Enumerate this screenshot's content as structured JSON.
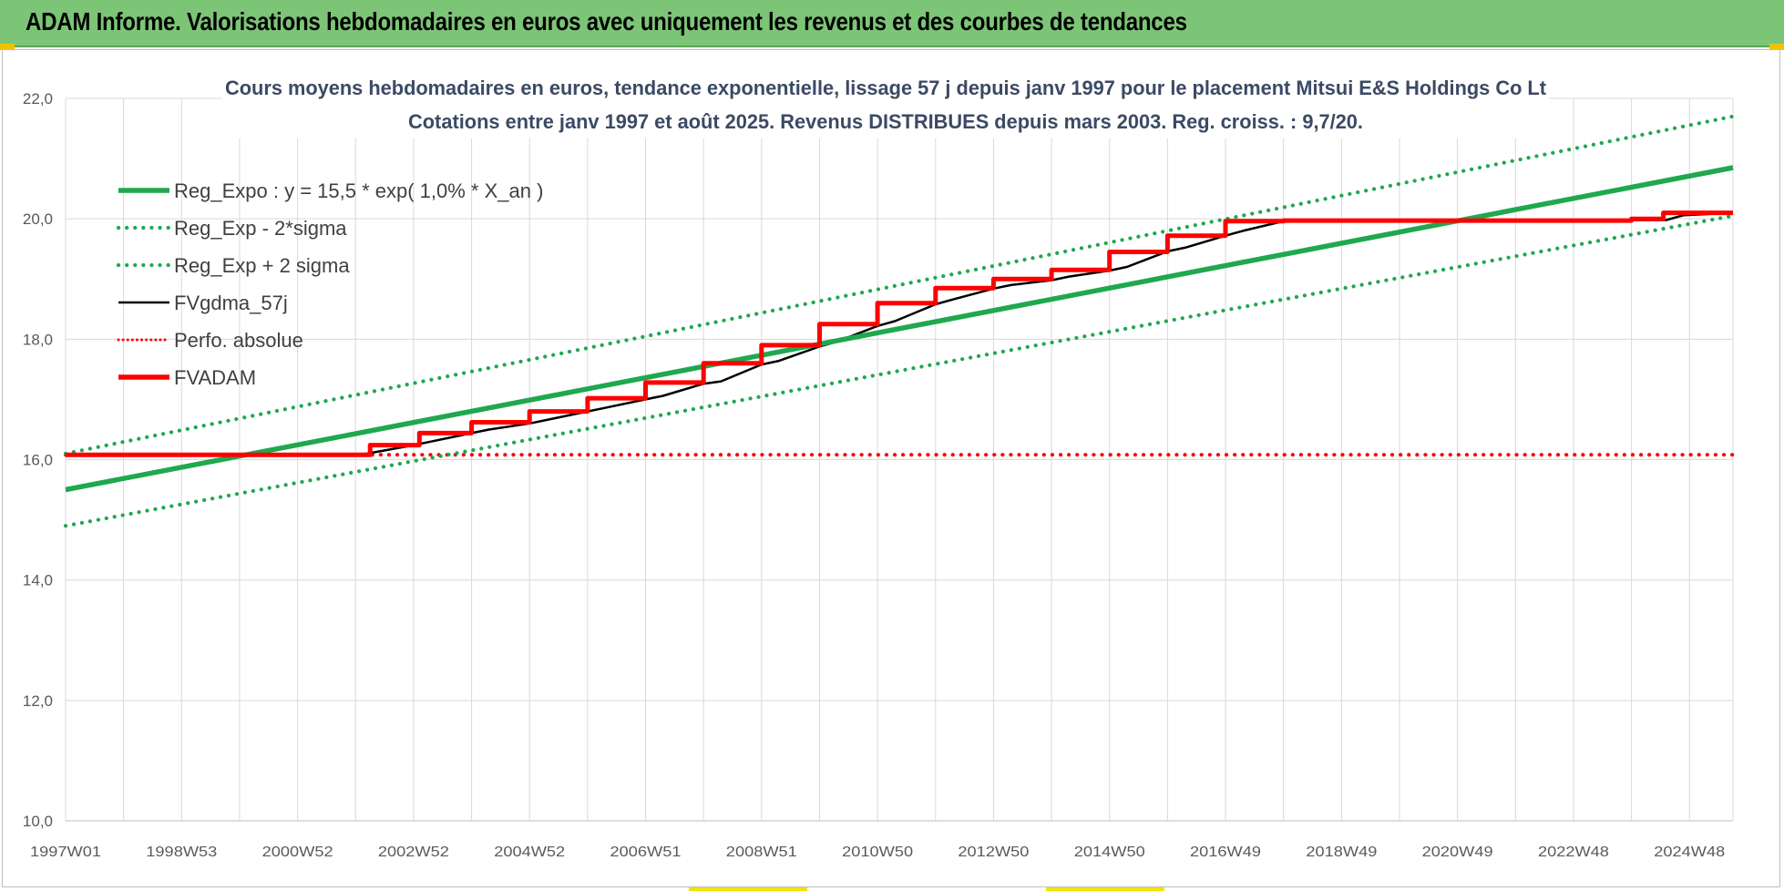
{
  "banner": {
    "title": "ADAM Informe. Valorisations hebdomadaires en euros avec uniquement les revenus et des courbes de tendances",
    "color": "#7cc576"
  },
  "chart_data": {
    "type": "line",
    "title_line1": "Cours moyens hebdomadaires en euros, tendance exponentielle, lissage 57 j depuis janv 1997 pour le placement Mitsui E&S Holdings Co Lt",
    "title_line2": "Cotations entre janv 1997 et août 2025.  Revenus DISTRIBUES depuis mars 2003. Reg. croiss. : 9,7/20.",
    "xlabel": "",
    "ylabel": "",
    "ylim": [
      10.0,
      22.0
    ],
    "xlim": [
      1997.0,
      2025.75
    ],
    "y_ticks": [
      "10,0",
      "12,0",
      "14,0",
      "16,0",
      "18,0",
      "20,0",
      "22,0"
    ],
    "y_tick_values": [
      10,
      12,
      14,
      16,
      18,
      20,
      22
    ],
    "x_ticks": [
      "1997W01",
      "1998W53",
      "2000W52",
      "2002W52",
      "2004W52",
      "2006W51",
      "2008W51",
      "2010W50",
      "2012W50",
      "2014W50",
      "2016W49",
      "2018W49",
      "2020W49",
      "2022W48",
      "2024W48"
    ],
    "x_tick_years": [
      1997.0,
      1999.0,
      2001.0,
      2003.0,
      2005.0,
      2007.0,
      2009.0,
      2011.0,
      2013.0,
      2015.0,
      2017.0,
      2019.0,
      2021.0,
      2023.0,
      2025.0
    ],
    "grid": true,
    "legend_position": "top-left",
    "series": [
      {
        "name": "Reg_Expo : y = 15,5 * exp( 1,0% *  X_an )",
        "style": "solid",
        "color": "#1fa84f",
        "x": [
          1997.0,
          2025.75
        ],
        "y": [
          15.5,
          20.85
        ]
      },
      {
        "name": "Reg_Exp - 2*sigma",
        "style": "dotted",
        "color": "#1fa84f",
        "x": [
          1997.0,
          2025.75
        ],
        "y": [
          14.9,
          20.05
        ]
      },
      {
        "name": "Reg_Exp + 2 sigma",
        "style": "dotted",
        "color": "#1fa84f",
        "x": [
          1997.0,
          2025.75
        ],
        "y": [
          16.1,
          21.7
        ]
      },
      {
        "name": "FVgdma_57j",
        "style": "solid-thin",
        "color": "#000000",
        "x": [
          1997.0,
          2001.9,
          2002.2,
          2003.0,
          2003.3,
          2004.0,
          2004.3,
          2005.0,
          2005.3,
          2006.0,
          2006.3,
          2007.0,
          2007.3,
          2008.0,
          2008.3,
          2009.0,
          2009.3,
          2010.0,
          2010.3,
          2011.0,
          2011.3,
          2012.0,
          2012.3,
          2013.0,
          2013.3,
          2014.0,
          2014.3,
          2015.0,
          2015.3,
          2016.0,
          2016.3,
          2017.0,
          2017.3,
          2018.0,
          2018.3,
          2024.6,
          2024.9,
          2025.75
        ],
        "y": [
          16.08,
          16.08,
          16.1,
          16.24,
          16.3,
          16.44,
          16.5,
          16.6,
          16.66,
          16.8,
          16.86,
          17.0,
          17.06,
          17.26,
          17.3,
          17.58,
          17.64,
          17.88,
          17.96,
          18.22,
          18.3,
          18.58,
          18.66,
          18.84,
          18.9,
          18.98,
          19.04,
          19.14,
          19.2,
          19.46,
          19.52,
          19.72,
          19.8,
          19.96,
          19.97,
          19.98,
          20.06,
          20.1
        ]
      },
      {
        "name": "Perfo. absolue",
        "style": "dotted",
        "color": "#ff0000",
        "x": [
          1997.0,
          2025.75
        ],
        "y": [
          16.08,
          16.08
        ]
      },
      {
        "name": "FVADAM",
        "style": "solid",
        "color": "#ff0000",
        "x": [
          1997.0,
          2002.25,
          2002.25,
          2003.1,
          2003.1,
          2004.0,
          2004.0,
          2005.0,
          2005.0,
          2006.0,
          2006.0,
          2007.0,
          2007.0,
          2008.0,
          2008.0,
          2009.0,
          2009.0,
          2010.0,
          2010.0,
          2011.0,
          2011.0,
          2012.0,
          2012.0,
          2013.0,
          2013.0,
          2014.0,
          2014.0,
          2015.0,
          2015.0,
          2016.0,
          2016.0,
          2017.0,
          2017.0,
          2018.0,
          2018.0,
          2024.0,
          2024.0,
          2024.55,
          2024.55,
          2025.75
        ],
        "y": [
          16.08,
          16.08,
          16.24,
          16.24,
          16.44,
          16.44,
          16.62,
          16.62,
          16.8,
          16.8,
          17.02,
          17.02,
          17.28,
          17.28,
          17.6,
          17.6,
          17.9,
          17.9,
          18.25,
          18.25,
          18.6,
          18.6,
          18.85,
          18.85,
          19.0,
          19.0,
          19.15,
          19.15,
          19.45,
          19.45,
          19.72,
          19.72,
          19.96,
          19.96,
          19.97,
          19.97,
          20.0,
          20.0,
          20.1,
          20.1
        ]
      }
    ]
  }
}
